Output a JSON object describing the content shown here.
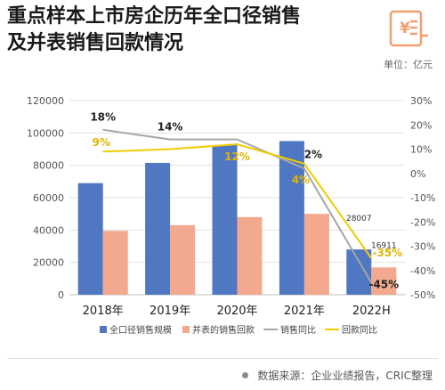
{
  "header": {
    "title_line1": "重点样本上市房企历年全口径销售",
    "title_line2": "及并表销售回款情况",
    "unit": "单位：亿元",
    "logo_icon": "yuan-document-icon"
  },
  "footer": {
    "source": "数据来源：企业业绩报告，CRIC整理"
  },
  "chart_data": {
    "type": "bar",
    "categories": [
      "2018年",
      "2019年",
      "2020年",
      "2021年",
      "2022H"
    ],
    "y_left": {
      "lim": [
        0,
        120000
      ],
      "ticks": [
        0,
        20000,
        40000,
        60000,
        80000,
        100000,
        120000
      ]
    },
    "y_right": {
      "lim": [
        -50,
        30
      ],
      "ticks": [
        30,
        20,
        10,
        0,
        -10,
        -20,
        -30,
        -40,
        -50
      ],
      "suffix": "%"
    },
    "series": [
      {
        "name": "全口径销售规模",
        "kind": "bar",
        "axis": "left",
        "color": "#4f77c2",
        "values": [
          69000,
          81500,
          92500,
          95000,
          28007
        ]
      },
      {
        "name": "并表的销售回款",
        "kind": "bar",
        "axis": "left",
        "color": "#f3a98e",
        "values": [
          39500,
          43000,
          48000,
          50000,
          16911
        ]
      },
      {
        "name": "销售同比",
        "kind": "line",
        "axis": "right",
        "color": "#a6a6a6",
        "values": [
          18,
          14,
          14,
          2,
          -45
        ]
      },
      {
        "name": "回款同比",
        "kind": "line",
        "axis": "right",
        "color": "#f0cc00",
        "values": [
          9,
          10,
          12,
          4,
          -35
        ]
      }
    ],
    "data_labels": [
      {
        "text": "18%",
        "series": "销售同比",
        "index": 0,
        "color": "#222222"
      },
      {
        "text": "14%",
        "series": "销售同比",
        "index": 1,
        "color": "#222222"
      },
      {
        "text": "2%",
        "series": "销售同比",
        "index": 3,
        "color": "#222222"
      },
      {
        "text": "-45%",
        "series": "销售同比",
        "index": 4,
        "color": "#222222"
      },
      {
        "text": "9%",
        "series": "回款同比",
        "index": 0,
        "color": "#e0b400"
      },
      {
        "text": "12%",
        "series": "回款同比",
        "index": 2,
        "color": "#e0b400"
      },
      {
        "text": "4%",
        "series": "回款同比",
        "index": 3,
        "color": "#e0b400"
      },
      {
        "text": "-35%",
        "series": "回款同比",
        "index": 4,
        "color": "#e0b400"
      },
      {
        "text": "28007",
        "series": "全口径销售规模",
        "index": 4,
        "color": "#333333"
      },
      {
        "text": "16911",
        "series": "并表的销售回款",
        "index": 4,
        "color": "#333333"
      }
    ],
    "grid": true,
    "legend": "bottom"
  }
}
